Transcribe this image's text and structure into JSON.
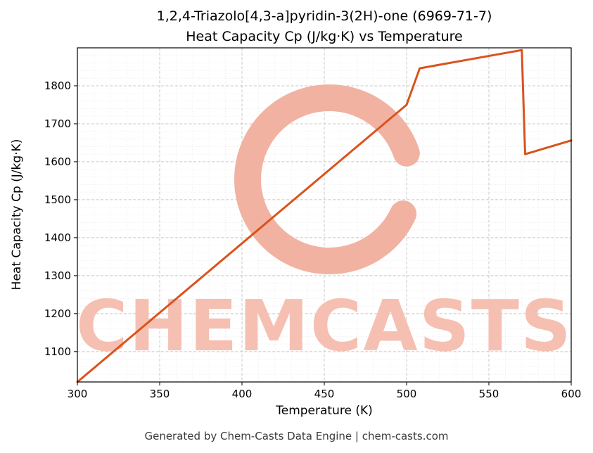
{
  "header": {
    "title_line1": "1,2,4-Triazolo[4,3-a]pyridin-3(2H)-one (6969-71-7)",
    "title_line2": "Heat Capacity Cp (J/kg·K) vs Temperature"
  },
  "footer": {
    "text": "Generated by Chem-Casts Data Engine | chem-casts.com"
  },
  "watermark": {
    "text": "CHEMCASTS",
    "text_color": "#f5c0b2",
    "ring_color": "#f2b2a2"
  },
  "chart_data": {
    "type": "line",
    "title": "1,2,4-Triazolo[4,3-a]pyridin-3(2H)-one (6969-71-7) Heat Capacity Cp (J/kg·K) vs Temperature",
    "xlabel": "Temperature (K)",
    "ylabel": "Heat Capacity Cp (J/kg·K)",
    "xlim": [
      300,
      600
    ],
    "ylim": [
      1020,
      1900
    ],
    "xticks": [
      300,
      350,
      400,
      450,
      500,
      550,
      600
    ],
    "yticks": [
      1100,
      1200,
      1300,
      1400,
      1500,
      1600,
      1700,
      1800
    ],
    "grid": true,
    "legend": "none",
    "line_color": "#d9531e",
    "series": [
      {
        "name": "Heat Capacity Cp",
        "x": [
          300,
          500,
          508,
          570,
          572,
          576,
          600
        ],
        "y": [
          1020,
          1750,
          1846,
          1894,
          1620,
          1625,
          1656
        ]
      }
    ]
  }
}
